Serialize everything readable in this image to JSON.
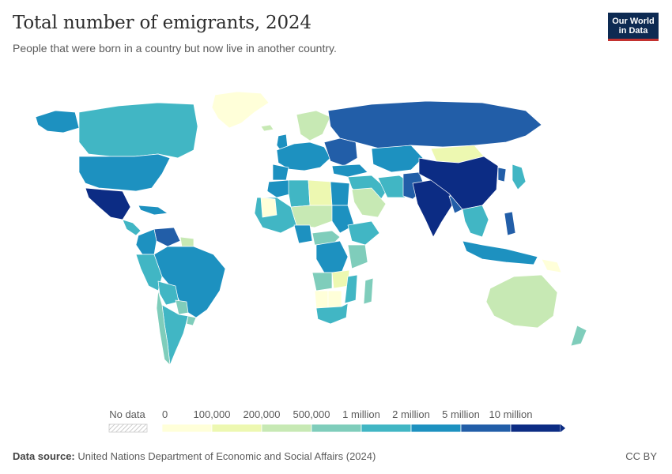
{
  "header": {
    "title": "Total number of emigrants, 2024",
    "subtitle": "People that were born in a country but now live in another country."
  },
  "logo": {
    "line1": "Our World",
    "line2": "in Data"
  },
  "legend": {
    "no_data_label": "No data",
    "bins": [
      {
        "label": "0",
        "color": "#ffffd9"
      },
      {
        "label": "100,000",
        "color": "#edf8b1"
      },
      {
        "label": "200,000",
        "color": "#c7e9b4"
      },
      {
        "label": "500,000",
        "color": "#7fcdbb"
      },
      {
        "label": "1 million",
        "color": "#41b6c4"
      },
      {
        "label": "2 million",
        "color": "#1d91c0"
      },
      {
        "label": "5 million",
        "color": "#225ea8"
      },
      {
        "label": "10 million",
        "color": "#0c2c84"
      }
    ]
  },
  "footer": {
    "source_label": "Data source:",
    "source_text": "United Nations Department of Economic and Social Affairs (2024)",
    "license": "CC BY"
  },
  "colors": {
    "ocean": "#ffffff",
    "border": "#ffffff"
  }
}
